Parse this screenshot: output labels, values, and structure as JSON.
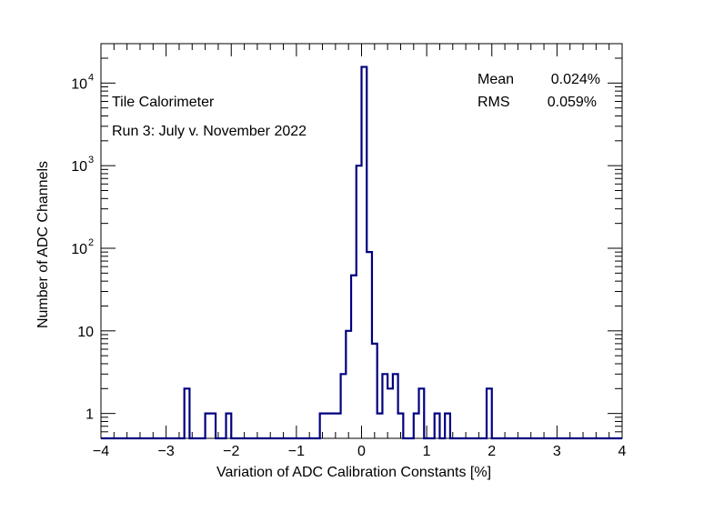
{
  "chart_data": {
    "type": "histogram",
    "title": "",
    "xlabel": "Variation of ADC Calibration Constants [%]",
    "ylabel": "Number of ADC Channels",
    "xlim": [
      -4,
      4
    ],
    "ylim": [
      0.5,
      30000
    ],
    "yscale": "log",
    "bin_width": 0.08,
    "x_ticks": [
      "−4",
      "−3",
      "−2",
      "−1",
      "0",
      "1",
      "2",
      "3",
      "4"
    ],
    "y_ticks": [
      {
        "value": 1,
        "base": "1",
        "exp": ""
      },
      {
        "value": 10,
        "base": "10",
        "exp": ""
      },
      {
        "value": 100,
        "base": "10",
        "exp": "2"
      },
      {
        "value": 1000,
        "base": "10",
        "exp": "3"
      },
      {
        "value": 10000,
        "base": "10",
        "exp": "4"
      }
    ],
    "line_color": "#000080",
    "bins": [
      {
        "x": -2.72,
        "y": 2
      },
      {
        "x": -2.4,
        "y": 1
      },
      {
        "x": -2.32,
        "y": 1
      },
      {
        "x": -2.08,
        "y": 1
      },
      {
        "x": -0.64,
        "y": 1
      },
      {
        "x": -0.56,
        "y": 1
      },
      {
        "x": -0.48,
        "y": 1
      },
      {
        "x": -0.4,
        "y": 1
      },
      {
        "x": -0.32,
        "y": 3
      },
      {
        "x": -0.24,
        "y": 10
      },
      {
        "x": -0.16,
        "y": 47
      },
      {
        "x": -0.08,
        "y": 1000
      },
      {
        "x": 0.0,
        "y": 15700
      },
      {
        "x": 0.08,
        "y": 90
      },
      {
        "x": 0.16,
        "y": 7
      },
      {
        "x": 0.24,
        "y": 1
      },
      {
        "x": 0.32,
        "y": 3
      },
      {
        "x": 0.4,
        "y": 2
      },
      {
        "x": 0.48,
        "y": 3
      },
      {
        "x": 0.56,
        "y": 1
      },
      {
        "x": 0.8,
        "y": 1
      },
      {
        "x": 0.88,
        "y": 2
      },
      {
        "x": 1.12,
        "y": 1
      },
      {
        "x": 1.28,
        "y": 1
      },
      {
        "x": 1.92,
        "y": 2
      }
    ],
    "annotations": [
      "Tile Calorimeter",
      "Run 3: July v. November 2022"
    ],
    "stats": {
      "mean_label": "Mean",
      "mean_value": "0.024%",
      "rms_label": "RMS",
      "rms_value": "0.059%"
    }
  }
}
